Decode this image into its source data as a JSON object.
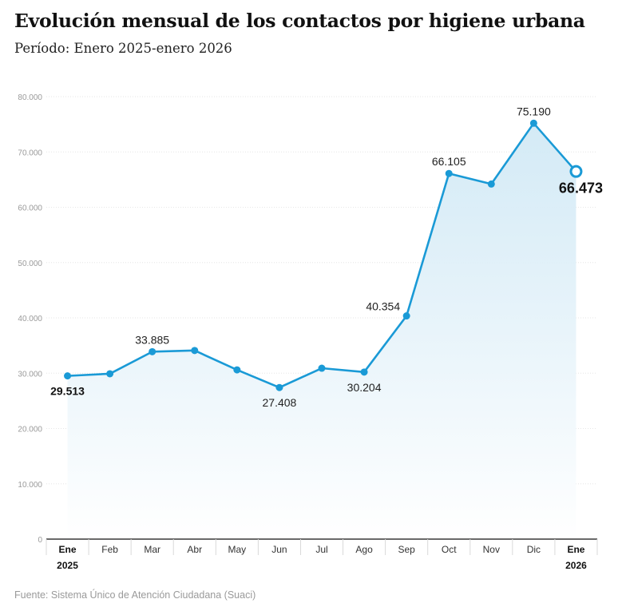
{
  "header": {
    "title": "Evolución mensual de los contactos por higiene urbana",
    "subtitle": "Período: Enero 2025-enero 2026"
  },
  "footer": {
    "source": "Fuente: Sistema Único de Atención Ciudadana (Suaci)"
  },
  "colors": {
    "line": "#1a9ad6",
    "area_top": "#cfe8f5",
    "area_bottom": "#ffffff",
    "grid": "#e6e6e6",
    "axis": "#111111"
  },
  "chart_data": {
    "type": "line",
    "categories": [
      "Ene",
      "Feb",
      "Mar",
      "Abr",
      "May",
      "Jun",
      "Jul",
      "Ago",
      "Sep",
      "Oct",
      "Nov",
      "Dic",
      "Ene"
    ],
    "year_labels": [
      "2025",
      "",
      "",
      "",
      "",
      "",
      "",
      "",
      "",
      "",
      "",
      "",
      "2026"
    ],
    "bold_categories": [
      0,
      12
    ],
    "values": [
      29513,
      29900,
      33885,
      34100,
      30600,
      27408,
      30900,
      30204,
      40354,
      66105,
      64200,
      75190,
      66473
    ],
    "data_labels": [
      {
        "index": 0,
        "text": "29.513",
        "position": "below",
        "style": "bold"
      },
      {
        "index": 2,
        "text": "33.885",
        "position": "above",
        "style": "normal"
      },
      {
        "index": 5,
        "text": "27.408",
        "position": "below",
        "style": "normal"
      },
      {
        "index": 7,
        "text": "30.204",
        "position": "below",
        "style": "normal"
      },
      {
        "index": 8,
        "text": "40.354",
        "position": "above-left",
        "style": "normal"
      },
      {
        "index": 9,
        "text": "66.105",
        "position": "above",
        "style": "normal"
      },
      {
        "index": 11,
        "text": "75.190",
        "position": "above",
        "style": "normal"
      },
      {
        "index": 12,
        "text": "66.473",
        "position": "below",
        "style": "big"
      }
    ],
    "highlight_last_point": true,
    "y_ticks": [
      0,
      10000,
      20000,
      30000,
      40000,
      50000,
      60000,
      70000,
      80000
    ],
    "y_tick_labels": [
      "0",
      "10.000",
      "20.000",
      "30.000",
      "40.000",
      "50.000",
      "60.000",
      "70.000",
      "80.000"
    ],
    "ylim": [
      0,
      80000
    ],
    "grid": true,
    "area_fill": true,
    "legend": "none"
  }
}
